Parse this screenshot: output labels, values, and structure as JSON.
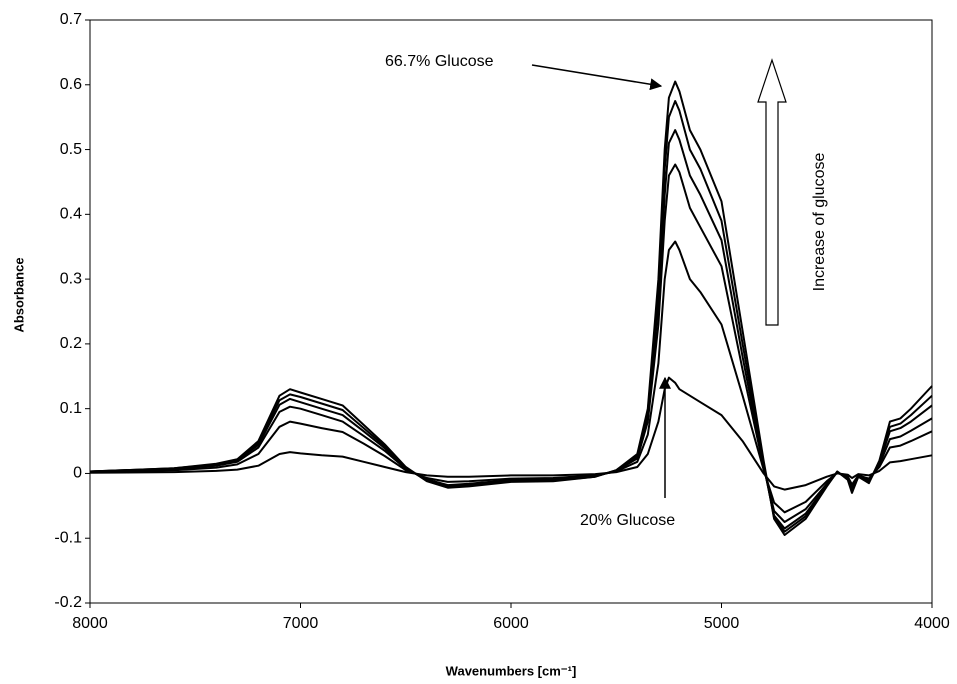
{
  "chart_data": {
    "type": "line",
    "x_label": "Wavenumbers [cm⁻¹]",
    "y_label": "Absorbance",
    "annotations": [
      "66.7% Glucose",
      "20% Glucose",
      "Increase of glucose"
    ],
    "x": [
      8000,
      7600,
      7400,
      7300,
      7200,
      7100,
      7050,
      7000,
      6900,
      6800,
      6700,
      6600,
      6500,
      6400,
      6300,
      6200,
      6000,
      5800,
      5600,
      5500,
      5400,
      5350,
      5300,
      5270,
      5250,
      5220,
      5200,
      5150,
      5100,
      5000,
      4900,
      4800,
      4750,
      4700,
      4600,
      4500,
      4450,
      4400,
      4380,
      4350,
      4300,
      4250,
      4200,
      4150,
      4100,
      4000
    ],
    "series": [
      {
        "color": "#000000",
        "values": [
          0.003,
          0.008,
          0.015,
          0.022,
          0.05,
          0.12,
          0.13,
          0.125,
          0.115,
          0.105,
          0.075,
          0.045,
          0.01,
          -0.012,
          -0.022,
          -0.02,
          -0.013,
          -0.012,
          -0.005,
          0.005,
          0.03,
          0.1,
          0.3,
          0.5,
          0.58,
          0.605,
          0.59,
          0.53,
          0.5,
          0.42,
          0.22,
          0.02,
          -0.07,
          -0.095,
          -0.07,
          -0.02,
          0.003,
          -0.01,
          -0.03,
          -0.005,
          -0.015,
          0.02,
          0.08,
          0.085,
          0.1,
          0.135
        ]
      },
      {
        "color": "#000000",
        "values": [
          0.003,
          0.008,
          0.014,
          0.021,
          0.047,
          0.113,
          0.122,
          0.118,
          0.108,
          0.098,
          0.07,
          0.042,
          0.009,
          -0.011,
          -0.021,
          -0.019,
          -0.012,
          -0.011,
          -0.005,
          0.005,
          0.028,
          0.095,
          0.28,
          0.47,
          0.55,
          0.575,
          0.56,
          0.5,
          0.47,
          0.39,
          0.2,
          0.015,
          -0.068,
          -0.09,
          -0.066,
          -0.019,
          0.003,
          -0.009,
          -0.028,
          -0.005,
          -0.014,
          0.018,
          0.072,
          0.077,
          0.09,
          0.12
        ]
      },
      {
        "color": "#000000",
        "values": [
          0.003,
          0.007,
          0.013,
          0.02,
          0.044,
          0.106,
          0.115,
          0.11,
          0.1,
          0.09,
          0.065,
          0.039,
          0.008,
          -0.01,
          -0.02,
          -0.018,
          -0.011,
          -0.01,
          -0.004,
          0.004,
          0.026,
          0.088,
          0.26,
          0.43,
          0.51,
          0.53,
          0.515,
          0.46,
          0.43,
          0.36,
          0.18,
          0.012,
          -0.065,
          -0.085,
          -0.062,
          -0.018,
          0.002,
          -0.008,
          -0.026,
          -0.004,
          -0.013,
          0.016,
          0.065,
          0.07,
          0.08,
          0.105
        ]
      },
      {
        "color": "#000000",
        "values": [
          0.003,
          0.007,
          0.012,
          0.018,
          0.04,
          0.095,
          0.103,
          0.1,
          0.09,
          0.08,
          0.058,
          0.035,
          0.007,
          -0.009,
          -0.018,
          -0.016,
          -0.01,
          -0.009,
          -0.004,
          0.004,
          0.023,
          0.08,
          0.23,
          0.39,
          0.46,
          0.477,
          0.465,
          0.41,
          0.38,
          0.32,
          0.16,
          0.01,
          -0.058,
          -0.075,
          -0.055,
          -0.016,
          0.002,
          -0.007,
          -0.022,
          -0.004,
          -0.011,
          0.013,
          0.053,
          0.057,
          0.066,
          0.085
        ]
      },
      {
        "color": "#000000",
        "values": [
          0.002,
          0.005,
          0.009,
          0.014,
          0.03,
          0.072,
          0.08,
          0.077,
          0.07,
          0.064,
          0.046,
          0.027,
          0.005,
          -0.007,
          -0.013,
          -0.012,
          -0.008,
          -0.007,
          -0.003,
          0.003,
          0.018,
          0.06,
          0.17,
          0.3,
          0.345,
          0.358,
          0.345,
          0.3,
          0.28,
          0.23,
          0.12,
          0.006,
          -0.045,
          -0.06,
          -0.044,
          -0.012,
          0.001,
          -0.005,
          -0.017,
          -0.003,
          -0.008,
          0.01,
          0.04,
          0.043,
          0.05,
          0.065
        ]
      },
      {
        "color": "#000000",
        "values": [
          0.001,
          0.002,
          0.004,
          0.006,
          0.012,
          0.03,
          0.033,
          0.031,
          0.028,
          0.026,
          0.018,
          0.01,
          0.002,
          -0.003,
          -0.005,
          -0.005,
          -0.003,
          -0.003,
          -0.001,
          0.002,
          0.01,
          0.03,
          0.08,
          0.13,
          0.148,
          0.14,
          0.13,
          0.12,
          0.11,
          0.09,
          0.05,
          0.0,
          -0.02,
          -0.025,
          -0.018,
          -0.005,
          0.0,
          -0.002,
          -0.007,
          -0.001,
          -0.003,
          0.004,
          0.017,
          0.019,
          0.022,
          0.028
        ]
      }
    ],
    "xlim": [
      8000,
      4000
    ],
    "xticks": [
      8000,
      7000,
      6000,
      5000,
      4000
    ],
    "ylim": [
      -0.2,
      0.7
    ],
    "yticks": [
      -0.2,
      -0.1,
      0,
      0.1,
      0.2,
      0.3,
      0.4,
      0.5,
      0.6,
      0.7
    ],
    "grid": false
  }
}
